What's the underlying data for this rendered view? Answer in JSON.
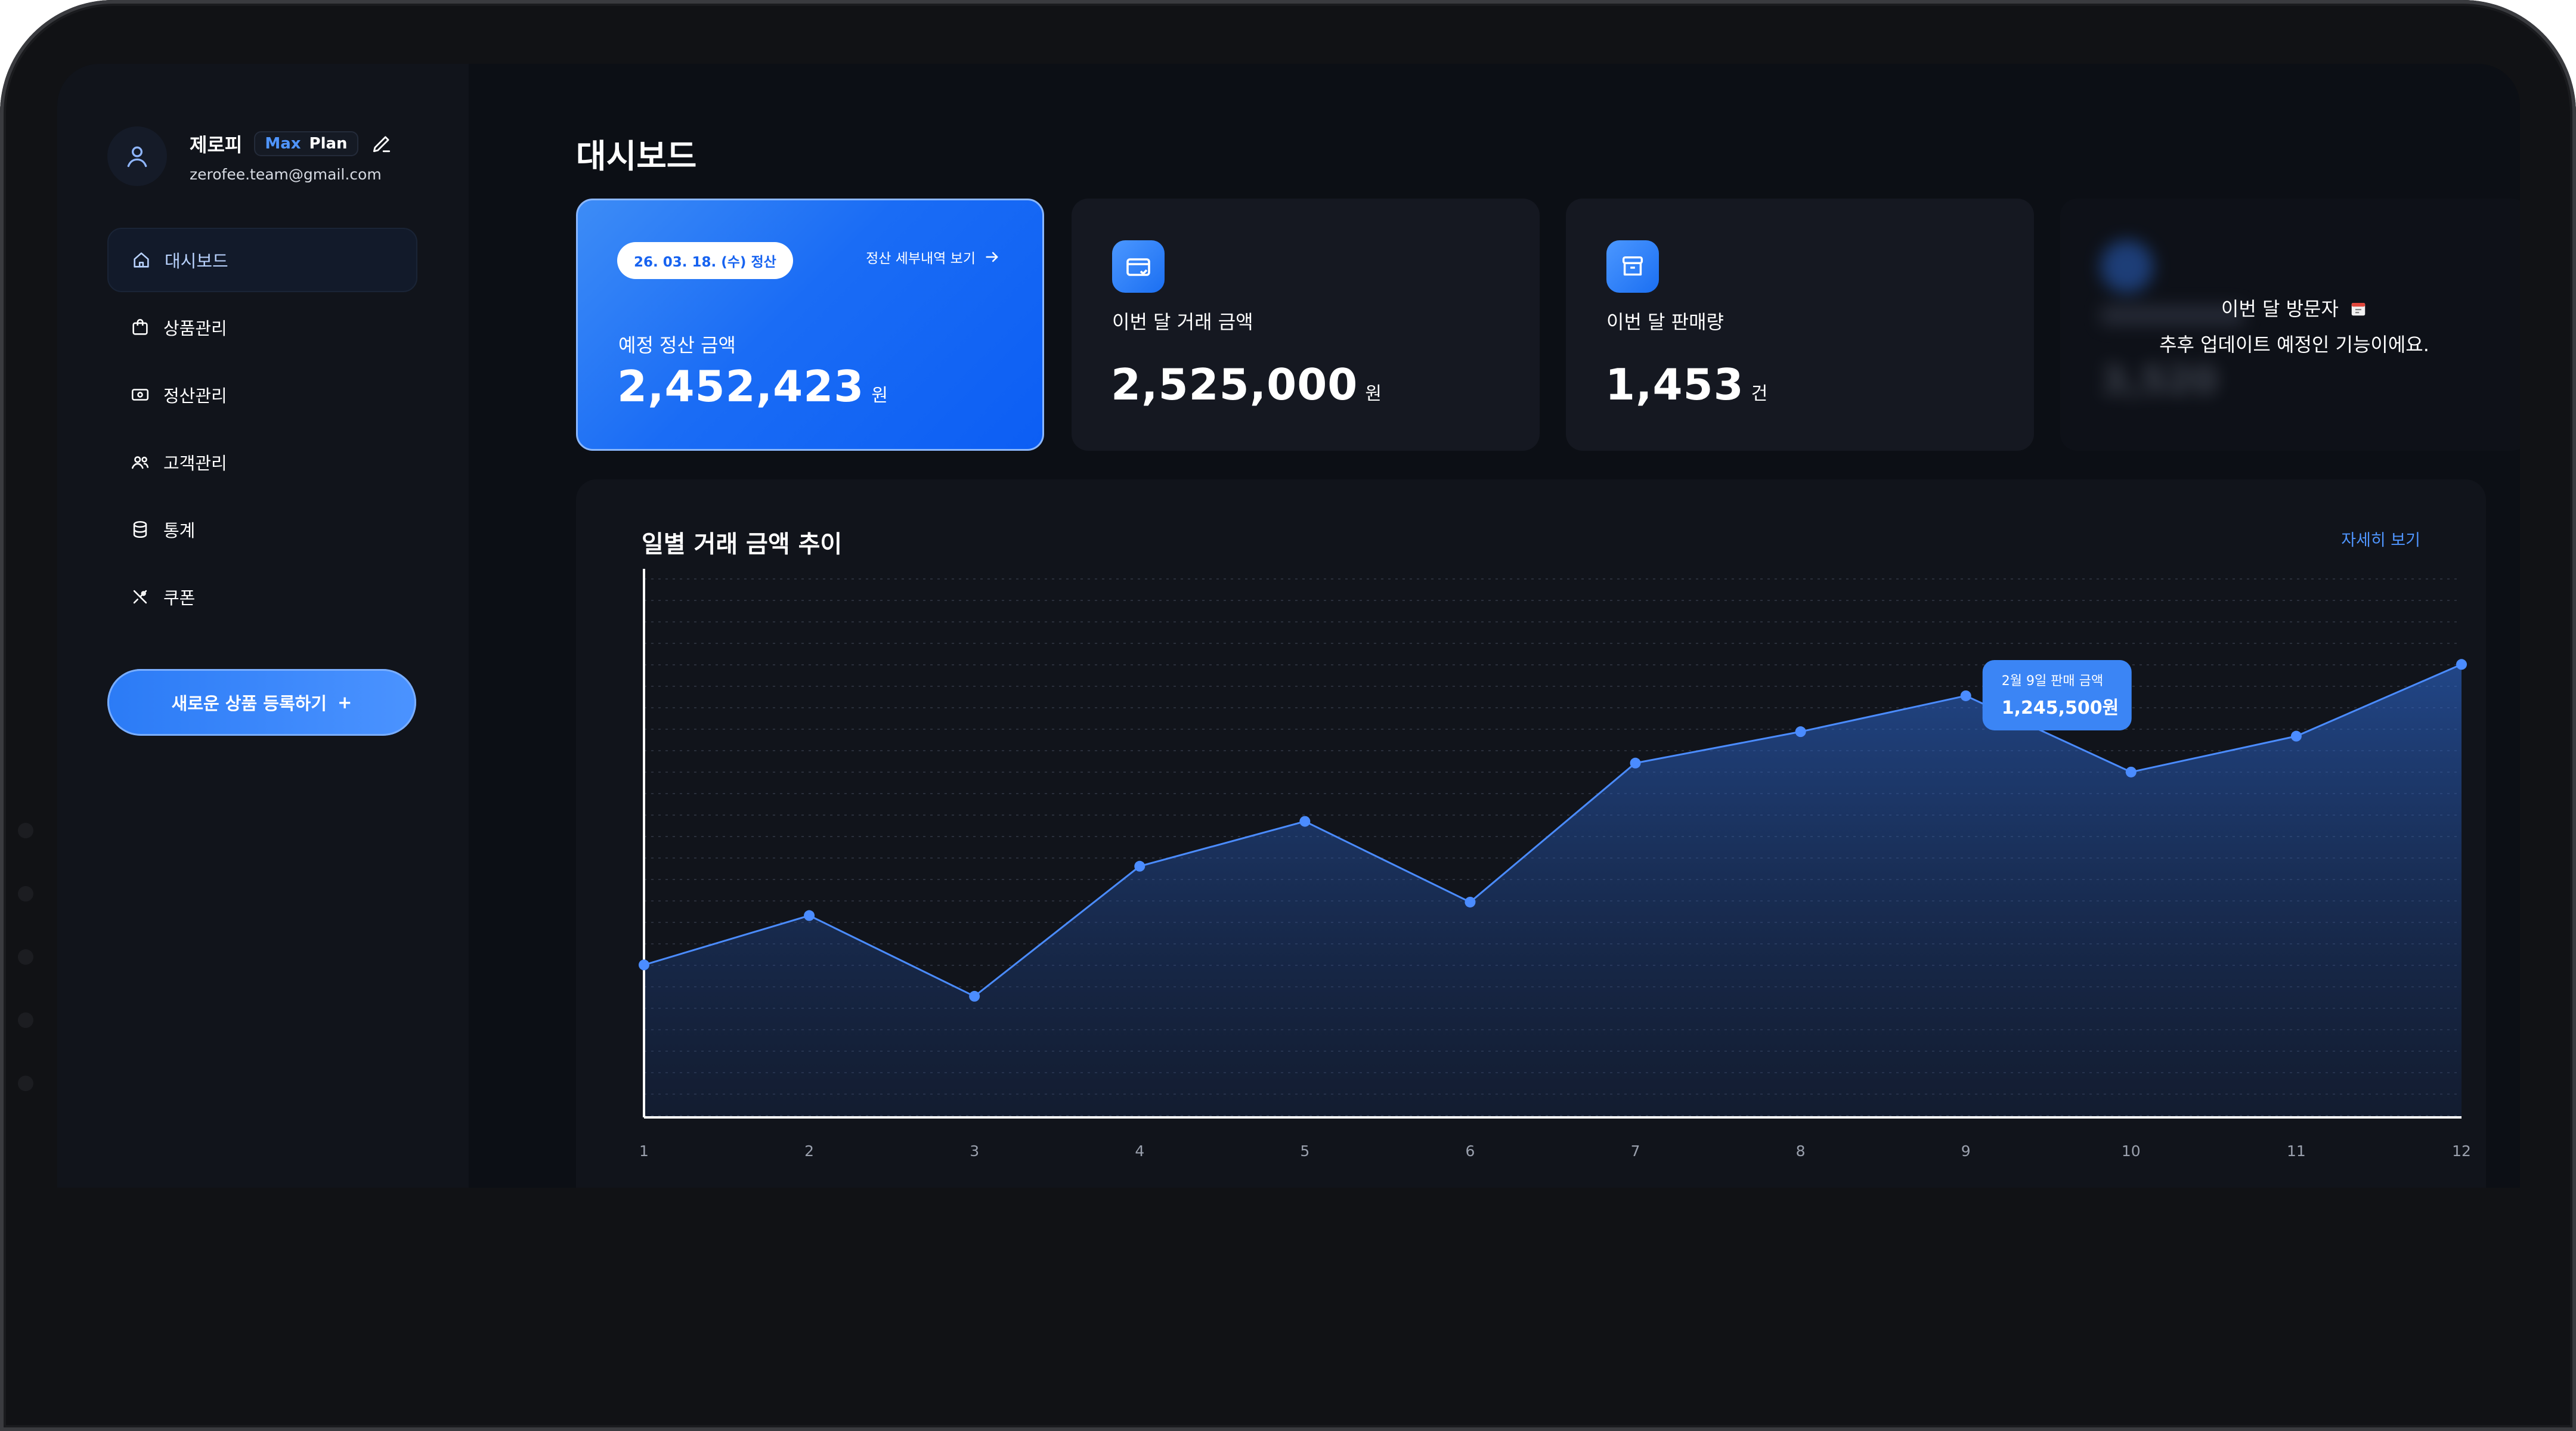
{
  "sidebar": {
    "profile": {
      "name": "제로피",
      "plan_badge": "Max",
      "plan_word": "Plan",
      "email": "zerofee.team@gmail.com"
    },
    "items": [
      {
        "label": "대시보드",
        "icon": "home-icon",
        "active": true
      },
      {
        "label": "상품관리",
        "icon": "bag-icon",
        "active": false
      },
      {
        "label": "정산관리",
        "icon": "money-icon",
        "active": false
      },
      {
        "label": "고객관리",
        "icon": "users-icon",
        "active": false
      },
      {
        "label": "통계",
        "icon": "database-icon",
        "active": false
      },
      {
        "label": "쿠폰",
        "icon": "tools-icon",
        "active": false
      }
    ],
    "cta_label": "새로운 상품 등록하기",
    "cta_plus": "+"
  },
  "main": {
    "title": "대시보드",
    "settlement": {
      "date_badge": "26. 03. 18. (수) 정산",
      "detail_link": "정산 세부내역 보기",
      "label": "예정 정산 금액",
      "amount": "2,452,423",
      "unit": "원"
    },
    "transactions": {
      "label": "이번 달 거래 금액",
      "amount": "2,525,000",
      "unit": "원",
      "icon": "card-icon"
    },
    "sales": {
      "label": "이번 달 판매량",
      "amount": "1,453",
      "unit": "건",
      "icon": "box-icon"
    },
    "visitors": {
      "title": "이번 달 방문자",
      "message": "추후 업데이트 예정인 기능이에요.",
      "blurred_amount": "3,520",
      "icon": "calendar-icon"
    }
  },
  "chart": {
    "title": "일별 거래 금액 추이",
    "link": "자세히 보기",
    "tooltip": {
      "label": "2월 9일 판매 금액",
      "value": "1,245,500원"
    }
  },
  "chart_data": {
    "type": "area",
    "x": [
      "1",
      "2",
      "3",
      "4",
      "5",
      "6",
      "7",
      "8",
      "9",
      "10",
      "11",
      "12"
    ],
    "series": [
      {
        "values": [
          19,
          30,
          12,
          41,
          51,
          33,
          64,
          71,
          79,
          62,
          70,
          86
        ]
      }
    ],
    "ylim": [
      -15,
      100
    ],
    "grid": true,
    "highlight_index": 8,
    "accent": "#4b8cff"
  }
}
